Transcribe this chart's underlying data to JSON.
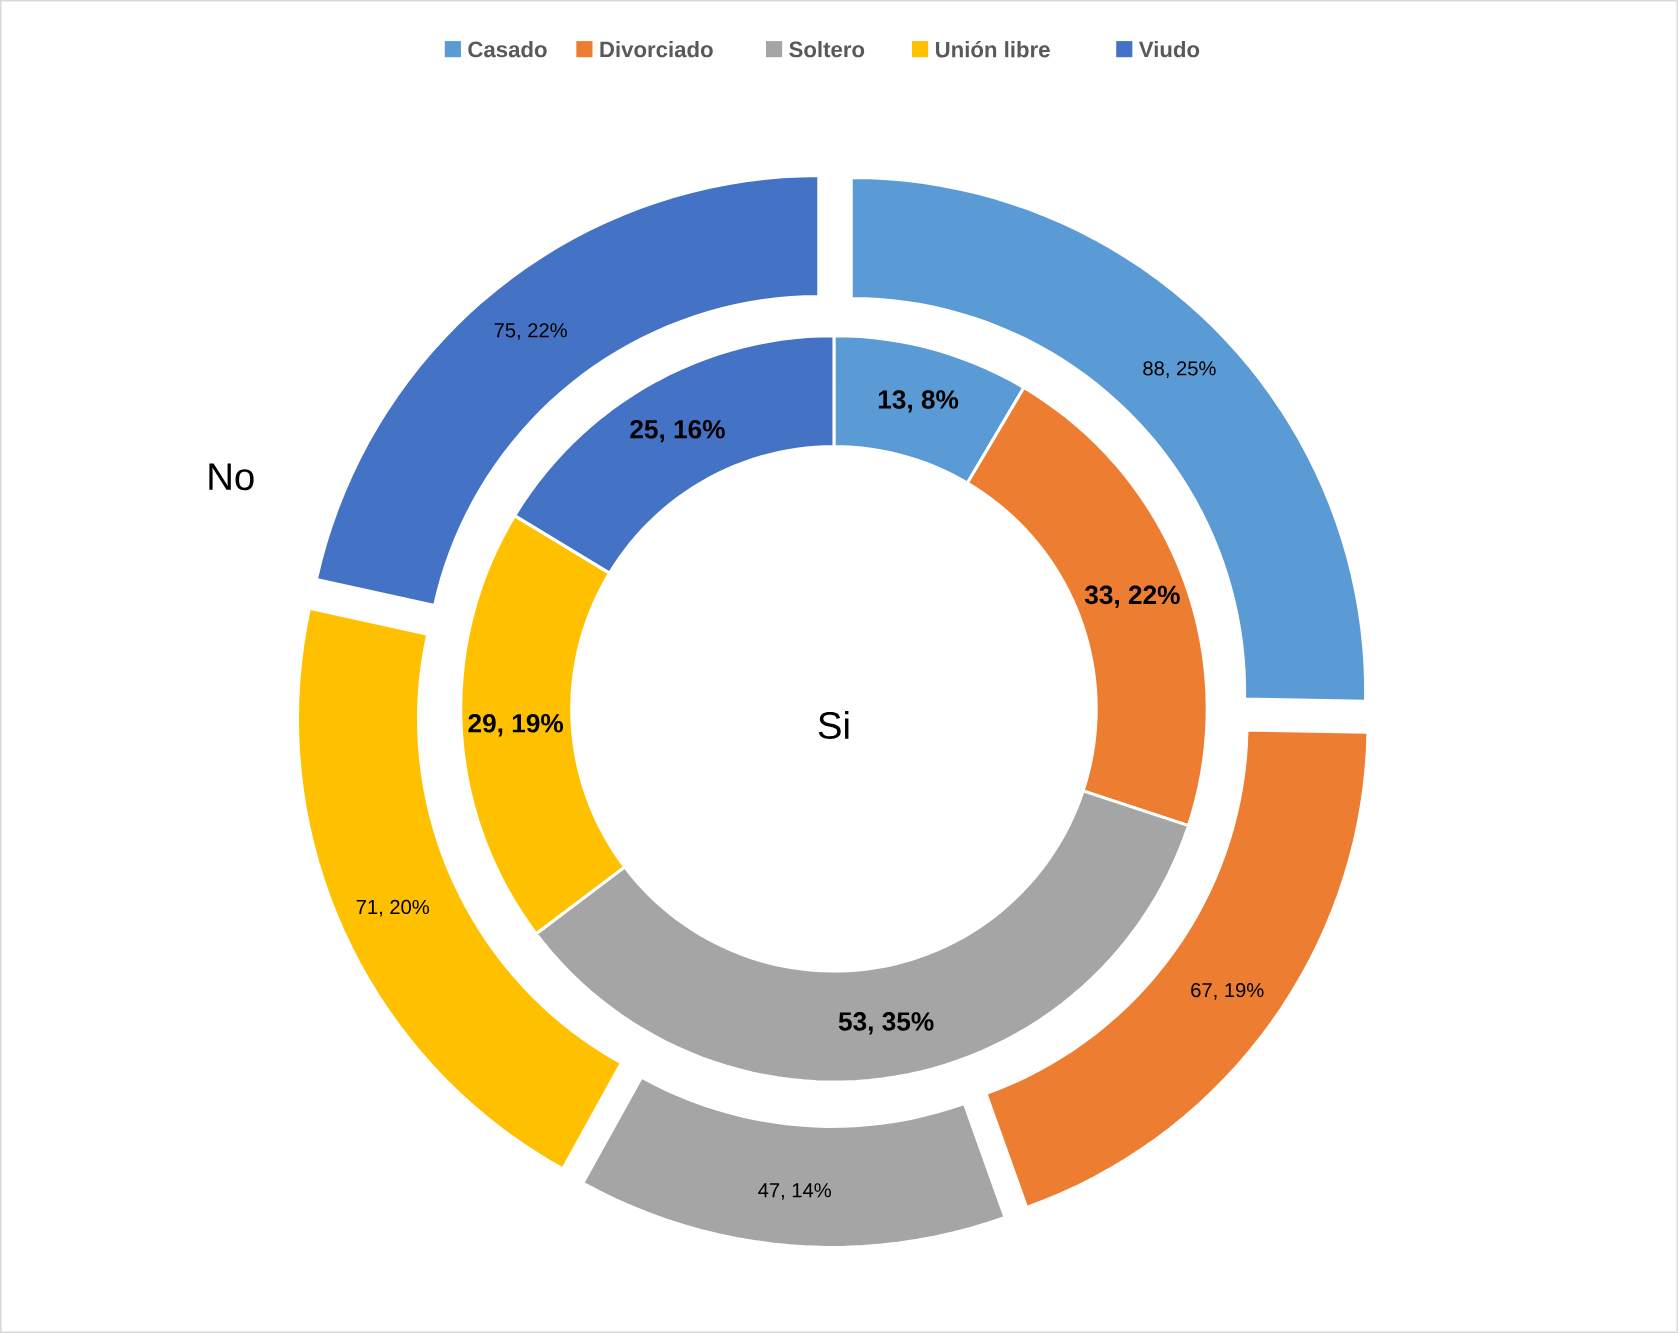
{
  "chart_data": {
    "type": "donut",
    "categories": [
      "Casado",
      "Divorciado",
      "Soltero",
      "Unión libre",
      "Viudo"
    ],
    "colors": [
      "#5b9bd5",
      "#ed7d31",
      "#a5a5a5",
      "#ffc000",
      "#4472c4"
    ],
    "series": [
      {
        "name": "Si",
        "values": [
          13,
          33,
          53,
          29,
          25
        ],
        "value_labels": [
          "13, 8%",
          "33, 22%",
          "53, 35%",
          "29, 19%",
          "25, 16%"
        ]
      },
      {
        "name": "No",
        "values": [
          88,
          67,
          47,
          71,
          75
        ],
        "value_labels": [
          "88, 25%",
          "67, 19%",
          "47, 14%",
          "71, 20%",
          "75, 22%"
        ]
      }
    ],
    "legend": "top"
  }
}
